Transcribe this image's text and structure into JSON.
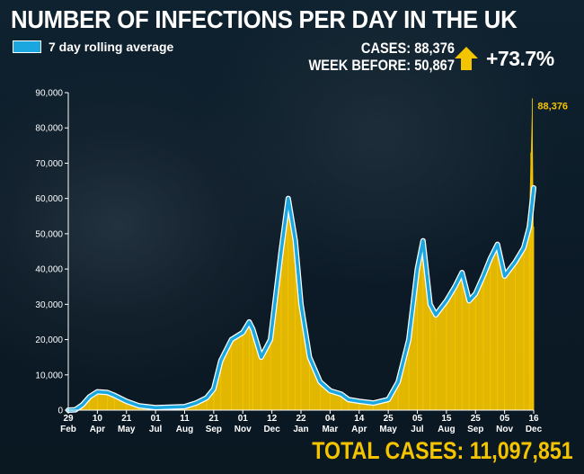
{
  "header": {
    "title": "NUMBER OF INFECTIONS PER DAY IN THE UK",
    "legend_label": "7 day rolling average",
    "cases_line": "CASES: 88,376",
    "week_before_line": "WEEK BEFORE: 50,867",
    "change": "+73.7%",
    "total": "TOTAL CASES: 11,097,851"
  },
  "colors": {
    "background": "#0b1a26",
    "bars": "#f5c400",
    "rolling_average": "#1aa7e0",
    "rolling_average_outline": "#ffffff",
    "text": "#ffffff",
    "accent": "#f5c400"
  },
  "icons": {
    "change_indicator": "up-arrow-icon"
  },
  "chart_data": {
    "type": "bar",
    "title": "NUMBER OF INFECTIONS PER DAY IN THE UK",
    "xlabel": "",
    "ylabel": "",
    "ylim": [
      0,
      90000
    ],
    "yticks": [
      0,
      10000,
      20000,
      30000,
      40000,
      50000,
      60000,
      70000,
      80000,
      90000
    ],
    "ytick_labels": [
      "0",
      "10,000",
      "20,000",
      "30,000",
      "40,000",
      "50,000",
      "60,000",
      "70,000",
      "80,000",
      "90,000"
    ],
    "x_ticks": [
      {
        "day": 0,
        "date": "29",
        "month": "Feb"
      },
      {
        "day": 41,
        "date": "10",
        "month": "Apr"
      },
      {
        "day": 82,
        "date": "21",
        "month": "May"
      },
      {
        "day": 123,
        "date": "01",
        "month": "Jul"
      },
      {
        "day": 164,
        "date": "11",
        "month": "Aug"
      },
      {
        "day": 205,
        "date": "21",
        "month": "Sep"
      },
      {
        "day": 246,
        "date": "01",
        "month": "Nov"
      },
      {
        "day": 287,
        "date": "12",
        "month": "Dec"
      },
      {
        "day": 328,
        "date": "22",
        "month": "Jan"
      },
      {
        "day": 369,
        "date": "04",
        "month": "Mar"
      },
      {
        "day": 410,
        "date": "14",
        "month": "Apr"
      },
      {
        "day": 451,
        "date": "25",
        "month": "May"
      },
      {
        "day": 492,
        "date": "05",
        "month": "Jul"
      },
      {
        "day": 533,
        "date": "15",
        "month": "Aug"
      },
      {
        "day": 574,
        "date": "25",
        "month": "Sep"
      },
      {
        "day": 615,
        "date": "05",
        "month": "Nov"
      },
      {
        "day": 656,
        "date": "16",
        "month": "Dec"
      }
    ],
    "series": [
      {
        "name": "Daily cases",
        "kind": "bar",
        "points": [
          [
            0,
            0
          ],
          [
            10,
            100
          ],
          [
            20,
            1500
          ],
          [
            30,
            3800
          ],
          [
            41,
            5200
          ],
          [
            55,
            5000
          ],
          [
            65,
            4200
          ],
          [
            82,
            2500
          ],
          [
            100,
            1200
          ],
          [
            123,
            700
          ],
          [
            164,
            1000
          ],
          [
            180,
            2000
          ],
          [
            195,
            3500
          ],
          [
            205,
            6000
          ],
          [
            215,
            14000
          ],
          [
            230,
            20000
          ],
          [
            246,
            22000
          ],
          [
            255,
            25000
          ],
          [
            260,
            23000
          ],
          [
            272,
            15000
          ],
          [
            285,
            20000
          ],
          [
            300,
            45000
          ],
          [
            310,
            60000
          ],
          [
            320,
            48000
          ],
          [
            328,
            30000
          ],
          [
            340,
            15000
          ],
          [
            355,
            8000
          ],
          [
            369,
            5500
          ],
          [
            385,
            4500
          ],
          [
            395,
            3000
          ],
          [
            410,
            2500
          ],
          [
            430,
            2000
          ],
          [
            451,
            3000
          ],
          [
            465,
            8000
          ],
          [
            480,
            20000
          ],
          [
            492,
            40000
          ],
          [
            500,
            48000
          ],
          [
            510,
            30000
          ],
          [
            518,
            27000
          ],
          [
            533,
            31000
          ],
          [
            545,
            35000
          ],
          [
            555,
            39000
          ],
          [
            565,
            31000
          ],
          [
            574,
            33000
          ],
          [
            585,
            38000
          ],
          [
            595,
            43000
          ],
          [
            605,
            47000
          ],
          [
            615,
            38000
          ],
          [
            630,
            42000
          ],
          [
            642,
            46000
          ],
          [
            650,
            58000
          ],
          [
            652,
            73000
          ],
          [
            654,
            88376
          ],
          [
            656,
            52000
          ]
        ]
      },
      {
        "name": "7 day rolling average",
        "kind": "line",
        "points": [
          [
            0,
            0
          ],
          [
            10,
            100
          ],
          [
            20,
            1500
          ],
          [
            30,
            3800
          ],
          [
            41,
            5200
          ],
          [
            55,
            5000
          ],
          [
            65,
            4200
          ],
          [
            82,
            2500
          ],
          [
            100,
            1200
          ],
          [
            123,
            700
          ],
          [
            164,
            1000
          ],
          [
            180,
            2000
          ],
          [
            195,
            3500
          ],
          [
            205,
            6000
          ],
          [
            215,
            14000
          ],
          [
            230,
            20000
          ],
          [
            246,
            22000
          ],
          [
            255,
            25000
          ],
          [
            260,
            23000
          ],
          [
            272,
            15000
          ],
          [
            285,
            20000
          ],
          [
            300,
            45000
          ],
          [
            310,
            60000
          ],
          [
            320,
            48000
          ],
          [
            328,
            30000
          ],
          [
            340,
            15000
          ],
          [
            355,
            8000
          ],
          [
            369,
            5500
          ],
          [
            385,
            4500
          ],
          [
            395,
            3000
          ],
          [
            410,
            2500
          ],
          [
            430,
            2000
          ],
          [
            451,
            3000
          ],
          [
            465,
            8000
          ],
          [
            480,
            20000
          ],
          [
            492,
            40000
          ],
          [
            500,
            48000
          ],
          [
            510,
            30000
          ],
          [
            518,
            27000
          ],
          [
            533,
            31000
          ],
          [
            545,
            35000
          ],
          [
            555,
            39000
          ],
          [
            565,
            31000
          ],
          [
            574,
            33000
          ],
          [
            585,
            38000
          ],
          [
            595,
            43000
          ],
          [
            605,
            47000
          ],
          [
            615,
            38000
          ],
          [
            630,
            42000
          ],
          [
            642,
            46000
          ],
          [
            650,
            52000
          ],
          [
            656,
            63000
          ]
        ]
      }
    ],
    "annotations": [
      {
        "label": "88,376",
        "day": 654,
        "value": 88376
      }
    ],
    "legend": {
      "position": "top-left"
    },
    "grid": false
  }
}
